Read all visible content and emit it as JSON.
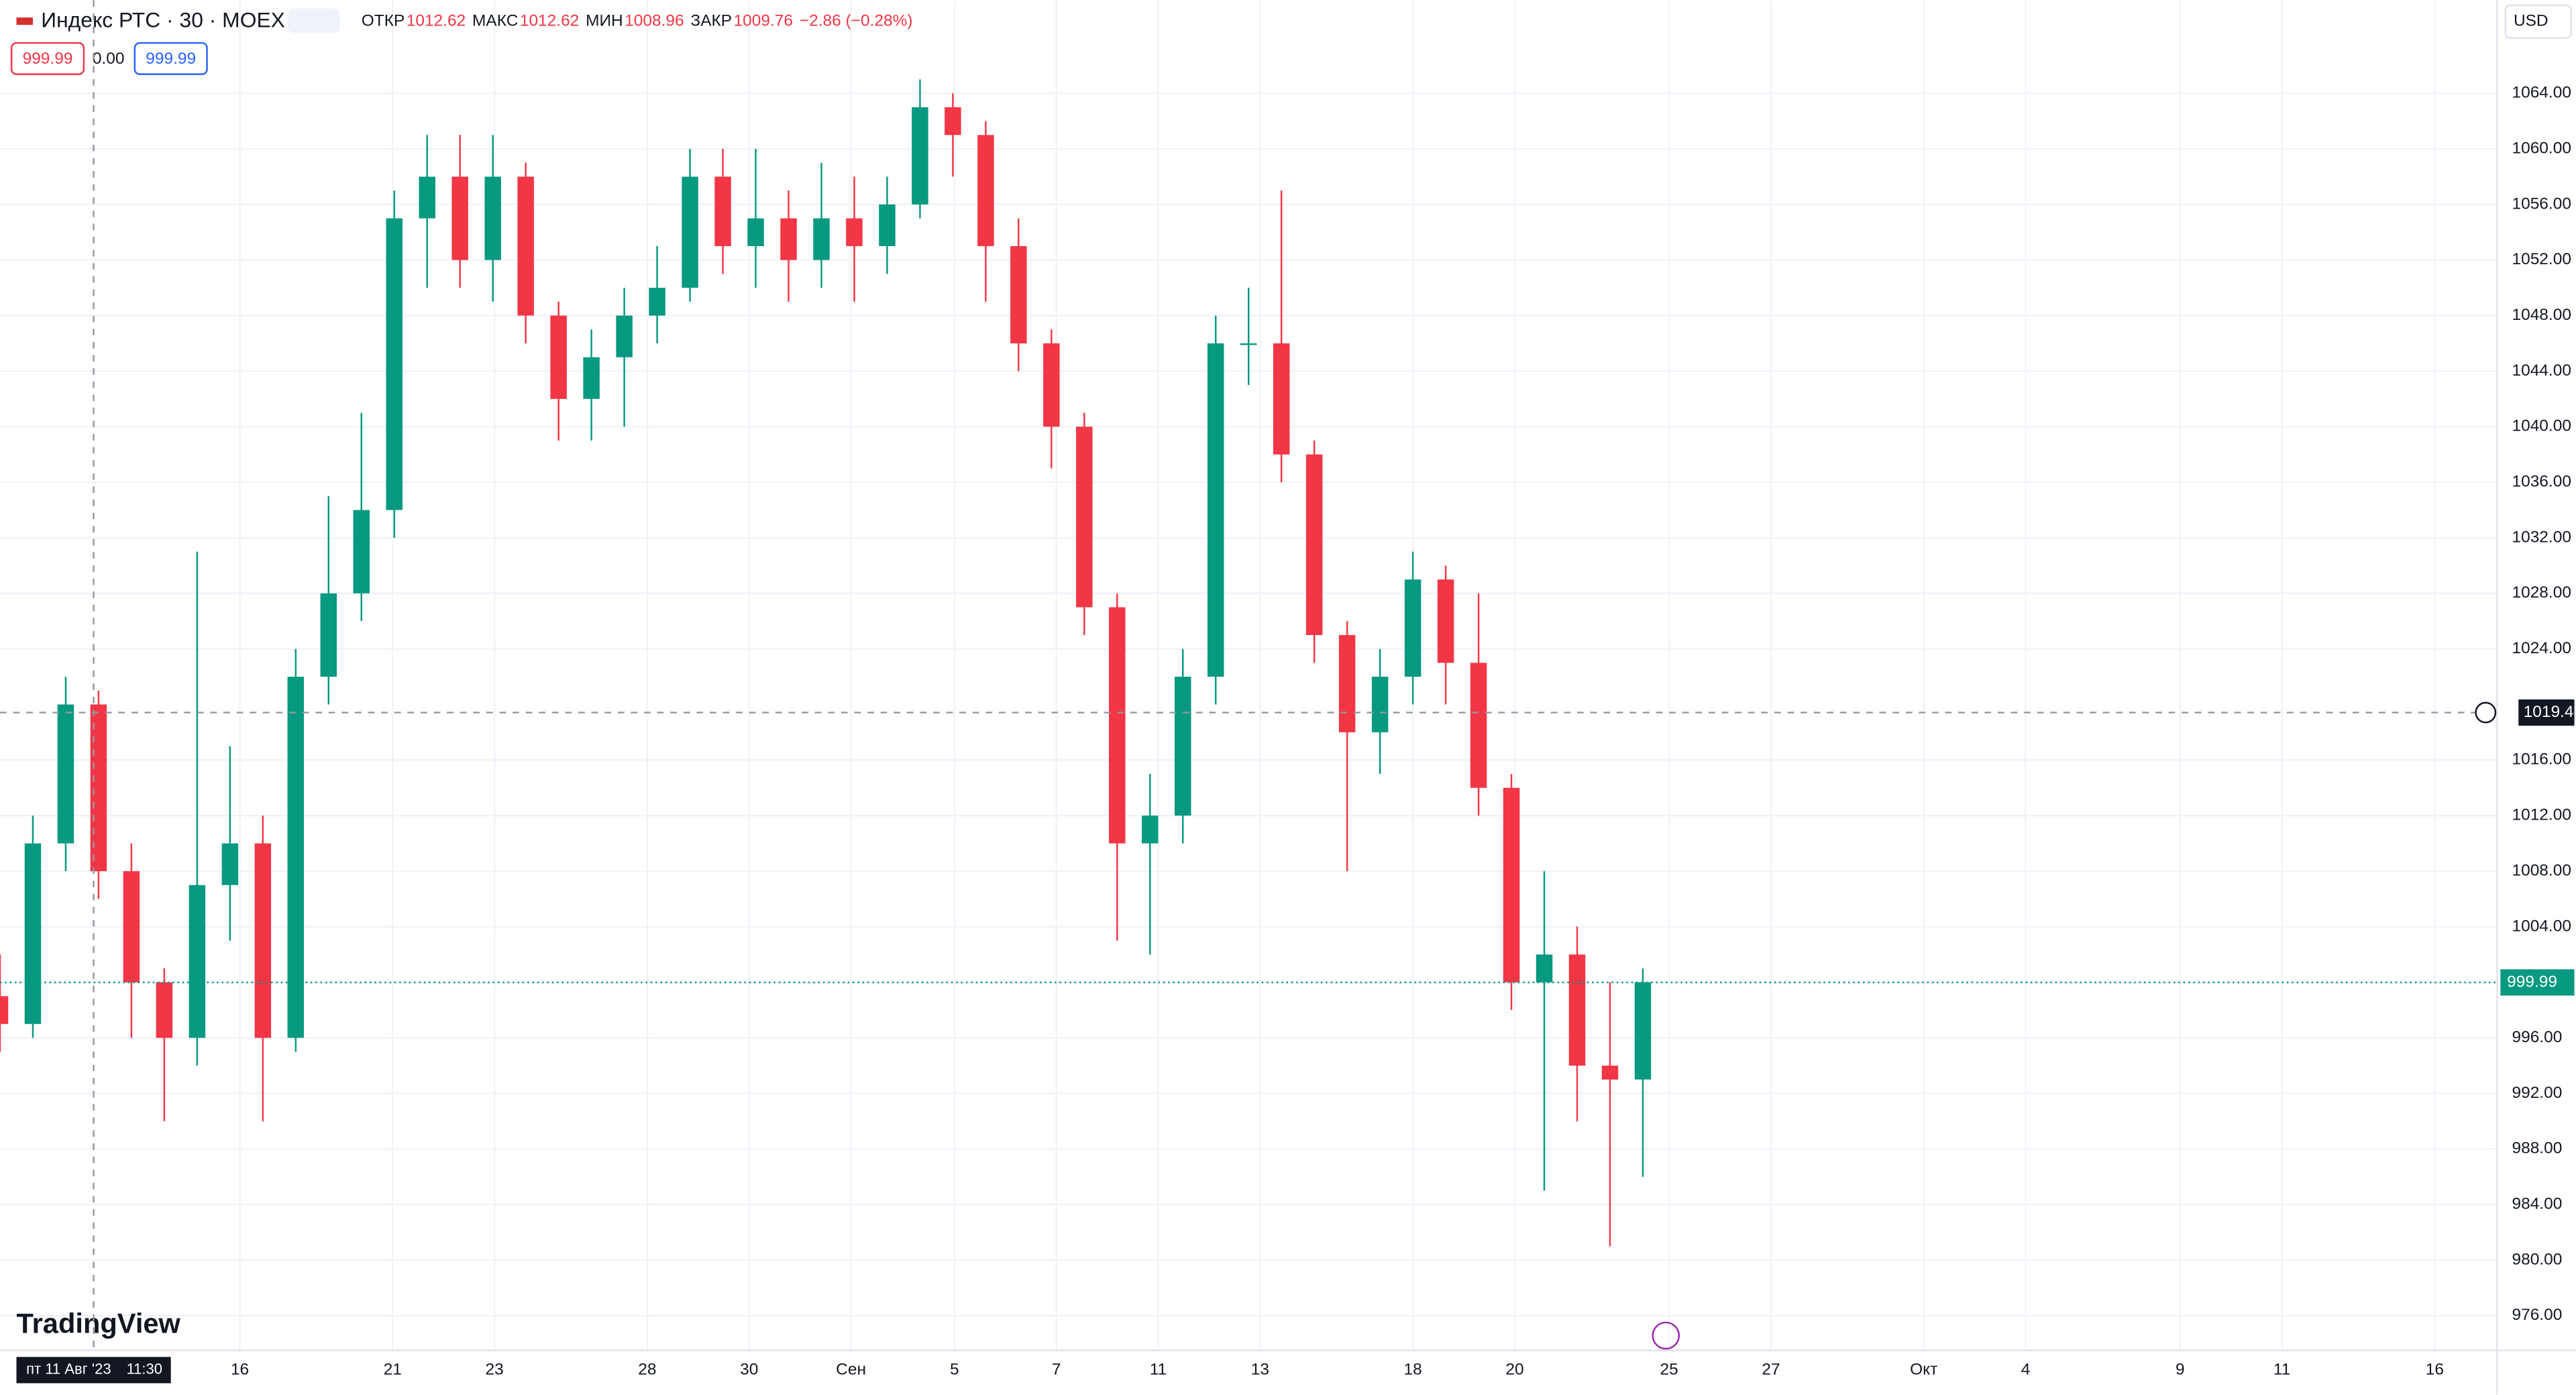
{
  "chart_data": {
    "type": "candlestick",
    "title": "Индекс РТС · 30 · MOEX",
    "ohlc_labels": [
      "ОТКР",
      "МАКС",
      "МИН",
      "ЗАКР"
    ],
    "ohlc_values": [
      1012.62,
      1012.62,
      1008.96,
      1009.76
    ],
    "change": "−2.86 (−0.28%)",
    "badges": [
      "999.99",
      "0.00",
      "999.99"
    ],
    "currency": "USD",
    "brand": "TradingView",
    "up_color": "#089981",
    "down_color": "#f23645",
    "open": [
      999,
      997,
      1010,
      1020,
      1008,
      1000,
      996,
      1007,
      1010,
      996,
      1022,
      1028,
      1034,
      1055,
      1058,
      1052,
      1058,
      1048,
      1042,
      1045,
      1048,
      1050,
      1058,
      1053,
      1055,
      1052,
      1055,
      1053,
      1056,
      1063,
      1061,
      1053,
      1046,
      1040,
      1027,
      1010,
      1012,
      1022,
      1046,
      1046,
      1038,
      1025,
      1018,
      1022,
      1029,
      1023,
      1014,
      1000,
      1002,
      994,
      993
    ],
    "high": [
      1002,
      1012,
      1022,
      1021,
      1010,
      1001,
      1031,
      1017,
      1012,
      1024,
      1035,
      1041,
      1057,
      1061,
      1061,
      1061,
      1059,
      1049,
      1047,
      1050,
      1053,
      1060,
      1060,
      1060,
      1057,
      1059,
      1058,
      1058,
      1065,
      1064,
      1062,
      1055,
      1047,
      1041,
      1028,
      1015,
      1024,
      1048,
      1050,
      1057,
      1039,
      1026,
      1024,
      1031,
      1030,
      1028,
      1015,
      1008,
      1004,
      1000,
      1001
    ],
    "low": [
      995,
      996,
      1008,
      1006,
      996,
      990,
      994,
      1003,
      990,
      995,
      1020,
      1026,
      1032,
      1050,
      1050,
      1049,
      1046,
      1039,
      1039,
      1040,
      1046,
      1049,
      1051,
      1050,
      1049,
      1050,
      1049,
      1051,
      1055,
      1058,
      1049,
      1044,
      1037,
      1025,
      1003,
      1002,
      1010,
      1020,
      1043,
      1036,
      1023,
      1008,
      1015,
      1020,
      1020,
      1012,
      998,
      985,
      990,
      981,
      986
    ],
    "close": [
      997,
      1010,
      1020,
      1008,
      1000,
      996,
      1007,
      1010,
      996,
      1022,
      1028,
      1034,
      1055,
      1058,
      1052,
      1058,
      1048,
      1042,
      1045,
      1048,
      1050,
      1058,
      1053,
      1055,
      1052,
      1055,
      1053,
      1056,
      1063,
      1061,
      1053,
      1046,
      1040,
      1027,
      1010,
      1012,
      1022,
      1046,
      1046,
      1038,
      1025,
      1018,
      1022,
      1029,
      1023,
      1014,
      1000,
      1002,
      994,
      993,
      1000
    ],
    "xlim": [
      0,
      76
    ],
    "xticks": [
      {
        "value": 7.3,
        "label": "16"
      },
      {
        "value": 11.95,
        "label": "21"
      },
      {
        "value": 15.05,
        "label": "23"
      },
      {
        "value": 19.7,
        "label": "28"
      },
      {
        "value": 22.8,
        "label": "30"
      },
      {
        "value": 25.9,
        "label": "Сен"
      },
      {
        "value": 29.05,
        "label": "5"
      },
      {
        "value": 32.15,
        "label": "7"
      },
      {
        "value": 35.25,
        "label": "11"
      },
      {
        "value": 38.35,
        "label": "13"
      },
      {
        "value": 43,
        "label": "18"
      },
      {
        "value": 46.1,
        "label": "20"
      },
      {
        "value": 50.8,
        "label": "25"
      },
      {
        "value": 53.9,
        "label": "27"
      },
      {
        "value": 58.55,
        "label": "Окт"
      },
      {
        "value": 61.65,
        "label": "4"
      },
      {
        "value": 66.35,
        "label": "9"
      },
      {
        "value": 69.45,
        "label": "11"
      },
      {
        "value": 74.1,
        "label": "16"
      }
    ],
    "ylim": [
      973.5,
      1070.7
    ],
    "yticks": [
      {
        "value": 976,
        "label": "976.00"
      },
      {
        "value": 980,
        "label": "980.00"
      },
      {
        "value": 984,
        "label": "984.00"
      },
      {
        "value": 988,
        "label": "988.00"
      },
      {
        "value": 992,
        "label": "992.00"
      },
      {
        "value": 996,
        "label": "996.00"
      },
      {
        "value": 1000,
        "label": "1000.00"
      },
      {
        "value": 1004,
        "label": "1004.00"
      },
      {
        "value": 1008,
        "label": "1008.00"
      },
      {
        "value": 1012,
        "label": "1012.00"
      },
      {
        "value": 1016,
        "label": "1016.00"
      },
      {
        "value": 1024,
        "label": "1024.00"
      },
      {
        "value": 1028,
        "label": "1028.00"
      },
      {
        "value": 1032,
        "label": "1032.00"
      },
      {
        "value": 1036,
        "label": "1036.00"
      },
      {
        "value": 1040,
        "label": "1040.00"
      },
      {
        "value": 1044,
        "label": "1044.00"
      },
      {
        "value": 1048,
        "label": "1048.00"
      },
      {
        "value": 1052,
        "label": "1052.00"
      },
      {
        "value": 1056,
        "label": "1056.00"
      },
      {
        "value": 1060,
        "label": "1060.00"
      },
      {
        "value": 1064,
        "label": "1064.00"
      }
    ],
    "grid": true,
    "crosshair": {
      "price": 1019.42,
      "x": 2.85,
      "date": "пт 11 Авг '23",
      "time": "11:30"
    },
    "last_price": 999.99
  }
}
